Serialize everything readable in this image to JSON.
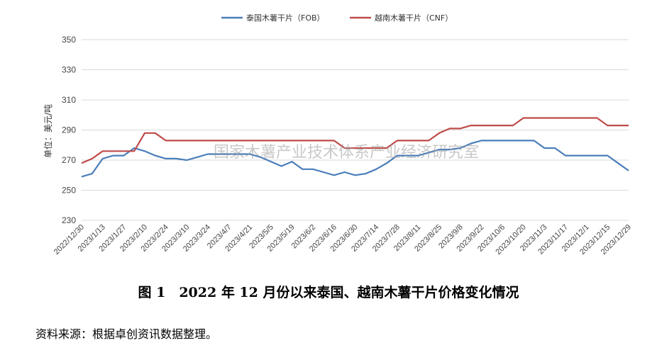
{
  "chart_data": {
    "type": "line",
    "ylabel": "单位：美元/吨",
    "ylim": [
      230,
      350
    ],
    "yticks": [
      230,
      250,
      270,
      290,
      310,
      330,
      350
    ],
    "grid": true,
    "legend_position": "top-center",
    "x": [
      "2022/12/30",
      "2023/1/6",
      "2023/1/13",
      "2023/1/20",
      "2023/1/27",
      "2023/2/3",
      "2023/2/10",
      "2023/2/17",
      "2023/2/24",
      "2023/3/3",
      "2023/3/10",
      "2023/3/17",
      "2023/3/24",
      "2023/3/31",
      "2023/4/7",
      "2023/4/14",
      "2023/4/21",
      "2023/4/28",
      "2023/5/5",
      "2023/5/12",
      "2023/5/19",
      "2023/5/26",
      "2023/6/2",
      "2023/6/9",
      "2023/6/16",
      "2023/6/23",
      "2023/6/30",
      "2023/7/7",
      "2023/7/14",
      "2023/7/21",
      "2023/7/28",
      "2023/8/4",
      "2023/8/11",
      "2023/8/18",
      "2023/8/25",
      "2023/9/1",
      "2023/9/8",
      "2023/9/15",
      "2023/9/22",
      "2023/9/29",
      "2023/10/6",
      "2023/10/13",
      "2023/10/20",
      "2023/10/27",
      "2023/11/3",
      "2023/11/10",
      "2023/11/17",
      "2023/11/24",
      "2023/12/1",
      "2023/12/8",
      "2023/12/15",
      "2023/12/22",
      "2023/12/29"
    ],
    "x_tick_labels": [
      "2022/12/30",
      "2023/1/13",
      "2023/1/27",
      "2023/2/10",
      "2023/2/24",
      "2023/3/10",
      "2023/3/24",
      "2023/4/7",
      "2023/4/21",
      "2023/5/5",
      "2023/5/19",
      "2023/6/2",
      "2023/6/16",
      "2023/6/30",
      "2023/7/14",
      "2023/7/28",
      "2023/8/11",
      "2023/8/25",
      "2023/9/8",
      "2023/9/22",
      "2023/10/6",
      "2023/10/20",
      "2023/11/3",
      "2023/11/17",
      "2023/12/1",
      "2023/12/15",
      "2023/12/29"
    ],
    "series": [
      {
        "name": "泰国木薯干片（FOB）",
        "color": "#4a7ebb",
        "values": [
          259,
          261,
          271,
          273,
          273,
          278,
          276,
          273,
          271,
          271,
          270,
          272,
          274,
          274,
          274,
          274,
          274,
          272,
          269,
          266,
          269,
          264,
          264,
          262,
          260,
          262,
          260,
          261,
          264,
          268,
          273,
          273,
          273,
          275,
          277,
          277,
          278,
          281,
          283,
          283,
          283,
          283,
          283,
          283,
          278,
          278,
          273,
          273,
          273,
          273,
          273,
          268,
          263
        ]
      },
      {
        "name": "越南木薯干片（CNF）",
        "color": "#be4b48",
        "values": [
          268,
          271,
          276,
          276,
          276,
          276,
          288,
          288,
          283,
          283,
          283,
          283,
          283,
          283,
          283,
          283,
          283,
          283,
          283,
          283,
          283,
          283,
          283,
          283,
          283,
          278,
          278,
          278,
          278,
          278,
          283,
          283,
          283,
          283,
          288,
          291,
          291,
          293,
          293,
          293,
          293,
          293,
          298,
          298,
          298,
          298,
          298,
          298,
          298,
          298,
          293,
          293,
          293
        ]
      }
    ]
  },
  "watermark": "国家木薯产业技术体系产业经济研究室",
  "caption": "图 1　2022 年 12 月份以来泰国、越南木薯干片价格变化情况",
  "source": "资料来源：根据卓创资讯数据整理。"
}
